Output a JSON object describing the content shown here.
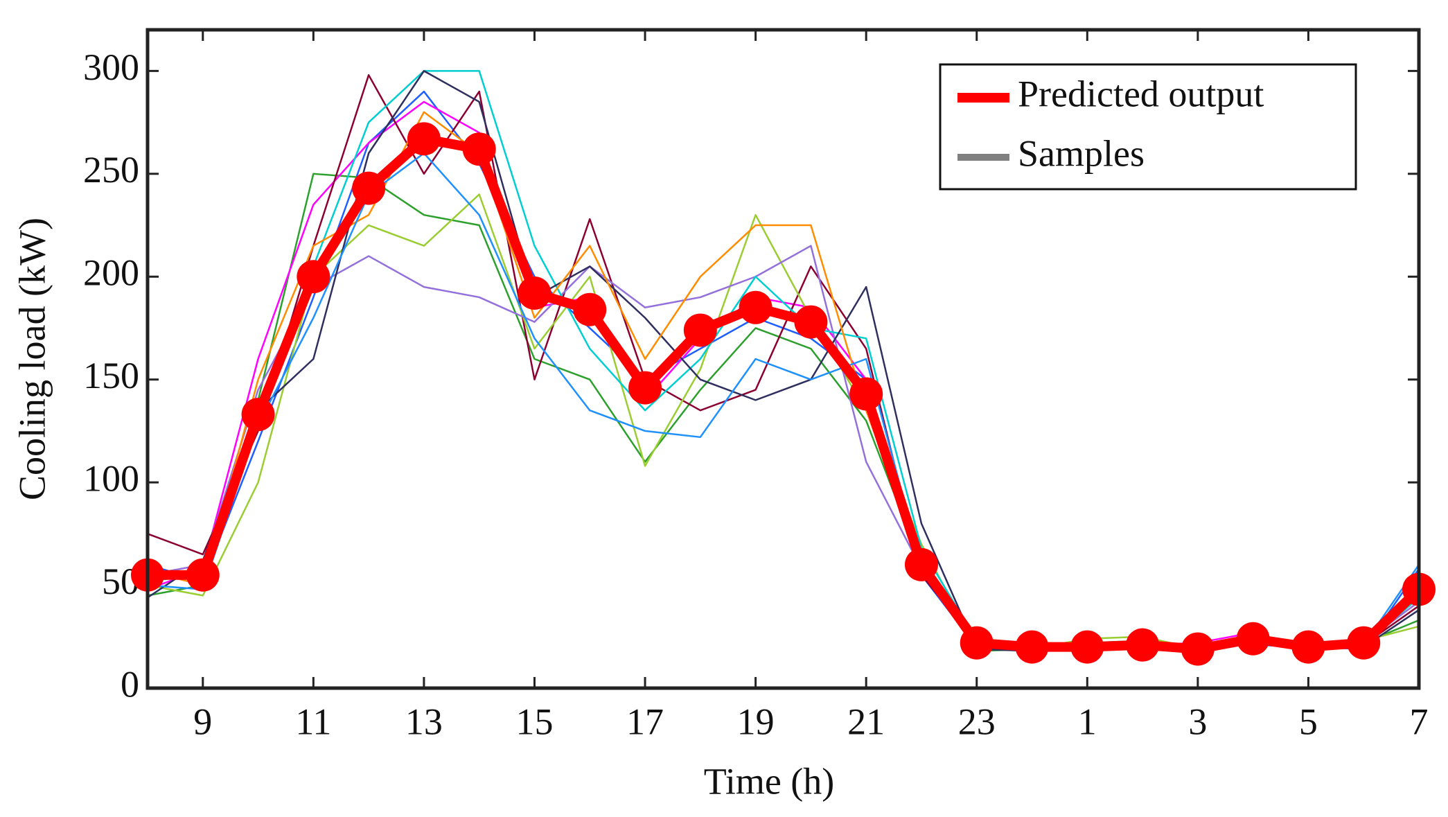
{
  "chart_data": {
    "type": "line",
    "xlabel": "Time (h)",
    "ylabel": "Cooling load (kW)",
    "categories": [
      null,
      9,
      null,
      11,
      null,
      13,
      null,
      15,
      null,
      17,
      null,
      19,
      null,
      21,
      null,
      23,
      null,
      1,
      null,
      3,
      null,
      5,
      null,
      7
    ],
    "ylim": [
      0,
      320
    ],
    "yticks": [
      0,
      50,
      100,
      150,
      200,
      250,
      300
    ],
    "legend": "upper right",
    "series": [
      {
        "name": "Predicted output",
        "color": "#ff0000",
        "values": [
          55,
          55,
          133,
          200,
          243,
          267,
          262,
          192,
          184,
          146,
          174,
          185,
          178,
          143,
          60,
          22,
          20,
          20,
          21,
          19,
          24,
          20,
          22,
          48
        ]
      }
    ],
    "samples": {
      "name": "Samples",
      "color": "#808080",
      "lines": [
        {
          "color": "#1f5fff",
          "values": [
            60,
            52,
            120,
            190,
            265,
            290,
            255,
            200,
            175,
            150,
            165,
            180,
            170,
            150,
            55,
            20,
            18,
            19,
            20,
            18,
            22,
            20,
            19,
            58
          ]
        },
        {
          "color": "#2ca02c",
          "values": [
            45,
            50,
            140,
            250,
            248,
            230,
            225,
            160,
            150,
            110,
            145,
            175,
            165,
            130,
            60,
            18,
            19,
            22,
            23,
            20,
            25,
            21,
            22,
            33
          ]
        },
        {
          "color": "#ff00ff",
          "values": [
            48,
            58,
            160,
            235,
            265,
            285,
            270,
            185,
            190,
            140,
            170,
            190,
            185,
            150,
            62,
            24,
            20,
            18,
            21,
            22,
            27,
            19,
            20,
            45
          ]
        },
        {
          "color": "#8b0030",
          "values": [
            75,
            65,
            125,
            215,
            298,
            250,
            290,
            150,
            228,
            150,
            135,
            145,
            205,
            165,
            55,
            22,
            21,
            20,
            22,
            21,
            24,
            22,
            21,
            40
          ]
        },
        {
          "color": "#9acd32",
          "values": [
            50,
            45,
            100,
            200,
            225,
            215,
            240,
            165,
            200,
            108,
            155,
            230,
            180,
            135,
            70,
            20,
            19,
            24,
            25,
            19,
            23,
            20,
            23,
            30
          ]
        },
        {
          "color": "#9370db",
          "values": [
            55,
            60,
            145,
            195,
            210,
            195,
            190,
            178,
            205,
            185,
            190,
            200,
            215,
            110,
            58,
            21,
            20,
            21,
            20,
            20,
            22,
            21,
            22,
            42
          ]
        },
        {
          "color": "#00ced1",
          "values": [
            52,
            55,
            130,
            205,
            275,
            300,
            300,
            215,
            165,
            135,
            160,
            200,
            175,
            170,
            68,
            23,
            22,
            20,
            21,
            21,
            23,
            20,
            21,
            44
          ]
        },
        {
          "color": "#2f2f5f",
          "values": [
            44,
            62,
            135,
            160,
            260,
            300,
            285,
            190,
            205,
            180,
            150,
            140,
            150,
            195,
            80,
            19,
            18,
            21,
            22,
            19,
            24,
            20,
            20,
            38
          ]
        },
        {
          "color": "#ff8c00",
          "values": [
            57,
            50,
            150,
            215,
            230,
            280,
            260,
            180,
            215,
            160,
            200,
            225,
            225,
            135,
            62,
            22,
            20,
            21,
            22,
            20,
            23,
            21,
            22,
            46
          ]
        },
        {
          "color": "#1e90ff",
          "values": [
            50,
            48,
            128,
            180,
            240,
            260,
            230,
            170,
            135,
            125,
            122,
            160,
            150,
            160,
            60,
            20,
            19,
            20,
            21,
            20,
            21,
            20,
            21,
            60
          ]
        }
      ]
    }
  }
}
